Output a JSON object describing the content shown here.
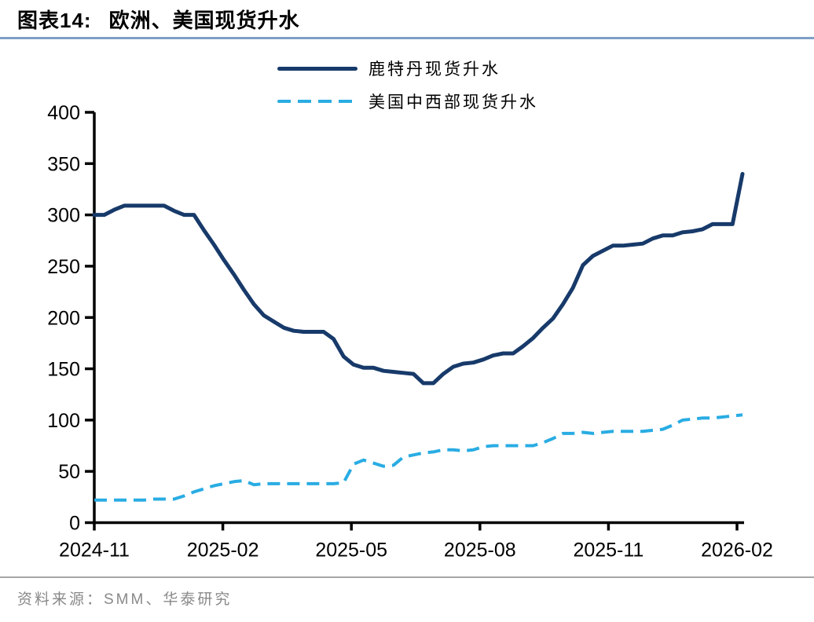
{
  "figure": {
    "title_prefix": "图表14:",
    "title": "欧洲、美国现货升水",
    "source_label": "资料来源：SMM、华泰研究"
  },
  "legend": [
    {
      "label": "鹿特丹现货升水",
      "style": "solid",
      "color": "#173a6a"
    },
    {
      "label": "美国中西部现货升水",
      "style": "dashed",
      "color": "#29ace3"
    }
  ],
  "chart_data": {
    "type": "line",
    "title": "欧洲、美国现货升水",
    "xlabel": "",
    "ylabel": "",
    "ylim": [
      0,
      400
    ],
    "y_ticks": [
      0,
      50,
      100,
      150,
      200,
      250,
      300,
      350,
      400
    ],
    "x_tick_labels": [
      "2024-11",
      "2025-02",
      "2025-05",
      "2025-08",
      "2025-11",
      "2026-02"
    ],
    "x_range_note": "weekly points from 2024-11 to 2026-02",
    "grid": false,
    "legend_position": "top-center",
    "series": [
      {
        "id": "rotterdam",
        "name": "鹿特丹现货升水",
        "color": "#173a6a",
        "line_style": "solid",
        "line_width": 5,
        "values": [
          300,
          300,
          305,
          309,
          309,
          309,
          309,
          309,
          304,
          300,
          300,
          285,
          271,
          256,
          242,
          227,
          213,
          202,
          196,
          190,
          187,
          186,
          186,
          186,
          179,
          162,
          154,
          151,
          151,
          148,
          147,
          146,
          145,
          136,
          136,
          145,
          152,
          155,
          156,
          159,
          163,
          165,
          165,
          172,
          180,
          190,
          199,
          213,
          229,
          251,
          260,
          265,
          270,
          270,
          271,
          272,
          277,
          280,
          280,
          283,
          284,
          286,
          291,
          291,
          291,
          340
        ]
      },
      {
        "id": "us-midwest",
        "name": "美国中西部现货升水",
        "color": "#29ace3",
        "line_style": "dashed",
        "line_width": 4,
        "values": [
          22,
          22,
          22,
          22,
          22,
          22,
          23,
          23,
          23,
          26,
          30,
          33,
          36,
          38,
          40,
          41,
          37,
          38,
          38,
          38,
          38,
          38,
          38,
          38,
          38,
          39,
          57,
          61,
          58,
          55,
          56,
          64,
          66,
          68,
          69,
          71,
          71,
          70,
          71,
          74,
          75,
          75,
          75,
          75,
          75,
          78,
          82,
          87,
          87,
          88,
          87,
          88,
          89,
          89,
          89,
          89,
          90,
          91,
          95,
          100,
          101,
          102,
          102,
          103,
          104,
          105
        ]
      }
    ]
  }
}
